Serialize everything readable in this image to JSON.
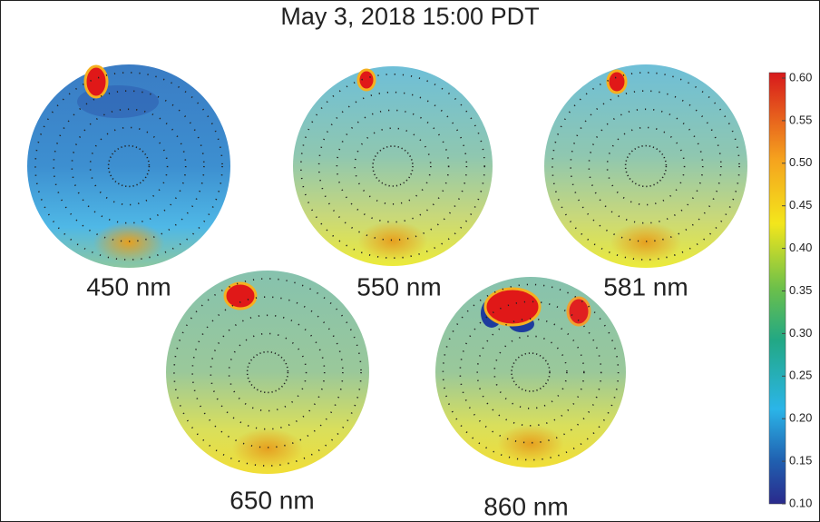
{
  "title": "May 3, 2018 15:00 PDT",
  "panels": [
    {
      "label": "450 nm"
    },
    {
      "label": "550 nm"
    },
    {
      "label": "581 nm"
    },
    {
      "label": "650 nm"
    },
    {
      "label": "860 nm"
    }
  ],
  "colorbar": {
    "ticks": [
      "0.60",
      "0.55",
      "0.50",
      "0.45",
      "0.40",
      "0.35",
      "0.30",
      "0.25",
      "0.20",
      "0.15",
      "0.10"
    ]
  }
}
